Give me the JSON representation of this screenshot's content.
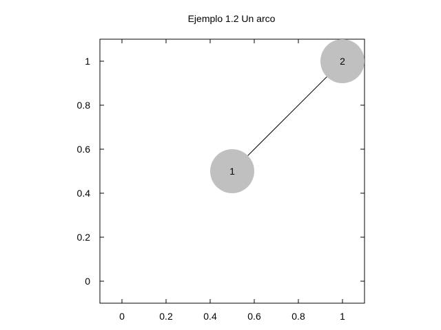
{
  "chart_data": {
    "type": "scatter",
    "title": "Ejemplo 1.2 Un arco",
    "xlabel": "",
    "ylabel": "",
    "xlim": [
      -0.1,
      1.1
    ],
    "ylim": [
      -0.1,
      1.1
    ],
    "xticks": [
      {
        "value": 0,
        "label": "0"
      },
      {
        "value": 0.2,
        "label": "0.2"
      },
      {
        "value": 0.4,
        "label": "0.4"
      },
      {
        "value": 0.6,
        "label": "0.6"
      },
      {
        "value": 0.8,
        "label": "0.8"
      },
      {
        "value": 1,
        "label": "1"
      }
    ],
    "yticks": [
      {
        "value": 0,
        "label": "0"
      },
      {
        "value": 0.2,
        "label": "0.2"
      },
      {
        "value": 0.4,
        "label": "0.4"
      },
      {
        "value": 0.6,
        "label": "0.6"
      },
      {
        "value": 0.8,
        "label": "0.8"
      },
      {
        "value": 1,
        "label": "1"
      }
    ],
    "grid": false,
    "nodes": [
      {
        "label": "1",
        "x": 0.5,
        "y": 0.5
      },
      {
        "label": "2",
        "x": 1.0,
        "y": 1.0
      }
    ],
    "edges": [
      {
        "from": "1",
        "to": "2"
      }
    ],
    "node_color": "#c0c0c0",
    "edge_color": "#000000"
  }
}
